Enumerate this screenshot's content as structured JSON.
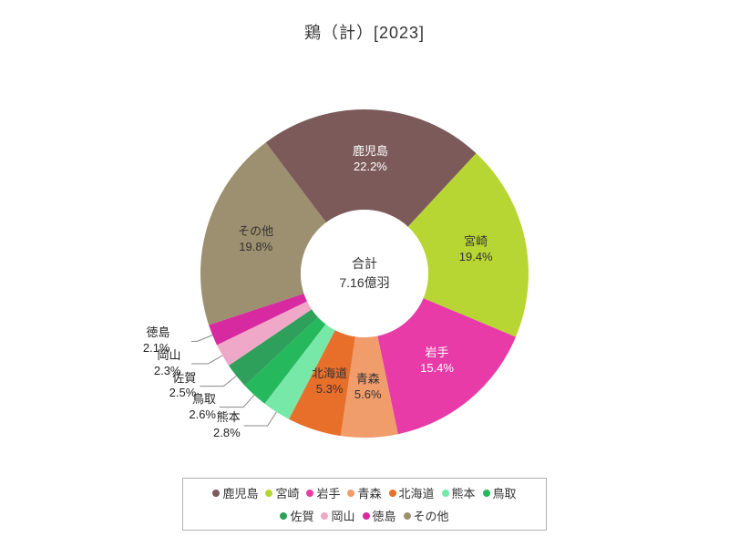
{
  "chart": {
    "type": "pie",
    "title": "鶏（計）[2023]",
    "title_fontsize": 18,
    "title_color": "#333333",
    "background_color": "#ffffff",
    "center_label_title": "合計",
    "center_label_value": "7.16億羽",
    "inner_radius": 70,
    "outer_radius": 180,
    "start_angle_deg": -37,
    "slices": [
      {
        "name": "鹿児島",
        "percent": 22.2,
        "color": "#7c5a5a",
        "label_mode": "inside",
        "label_text_color": "#ffffff"
      },
      {
        "name": "宮崎",
        "percent": 19.4,
        "color": "#b7d633",
        "label_mode": "inside",
        "label_text_color": "#333333"
      },
      {
        "name": "岩手",
        "percent": 15.4,
        "color": "#e83ba8",
        "label_mode": "inside",
        "label_text_color": "#ffffff"
      },
      {
        "name": "青森",
        "percent": 5.6,
        "color": "#f09c6b",
        "label_mode": "inside",
        "label_text_color": "#333333"
      },
      {
        "name": "北海道",
        "percent": 5.3,
        "color": "#e86f2a",
        "label_mode": "inside",
        "label_text_color": "#333333"
      },
      {
        "name": "熊本",
        "percent": 2.8,
        "color": "#77e8a8",
        "label_mode": "outside"
      },
      {
        "name": "鳥取",
        "percent": 2.6,
        "color": "#26b85d",
        "label_mode": "outside"
      },
      {
        "name": "佐賀",
        "percent": 2.5,
        "color": "#2fa05c",
        "label_mode": "outside"
      },
      {
        "name": "岡山",
        "percent": 2.3,
        "color": "#f0a8c8",
        "label_mode": "outside"
      },
      {
        "name": "徳島",
        "percent": 2.1,
        "color": "#d82aa0",
        "label_mode": "outside"
      },
      {
        "name": "その他",
        "percent": 19.8,
        "color": "#9c9070",
        "label_mode": "inside",
        "label_text_color": "#333333"
      }
    ],
    "legend": {
      "border_color": "#b0b0b0",
      "fontsize": 13
    }
  }
}
